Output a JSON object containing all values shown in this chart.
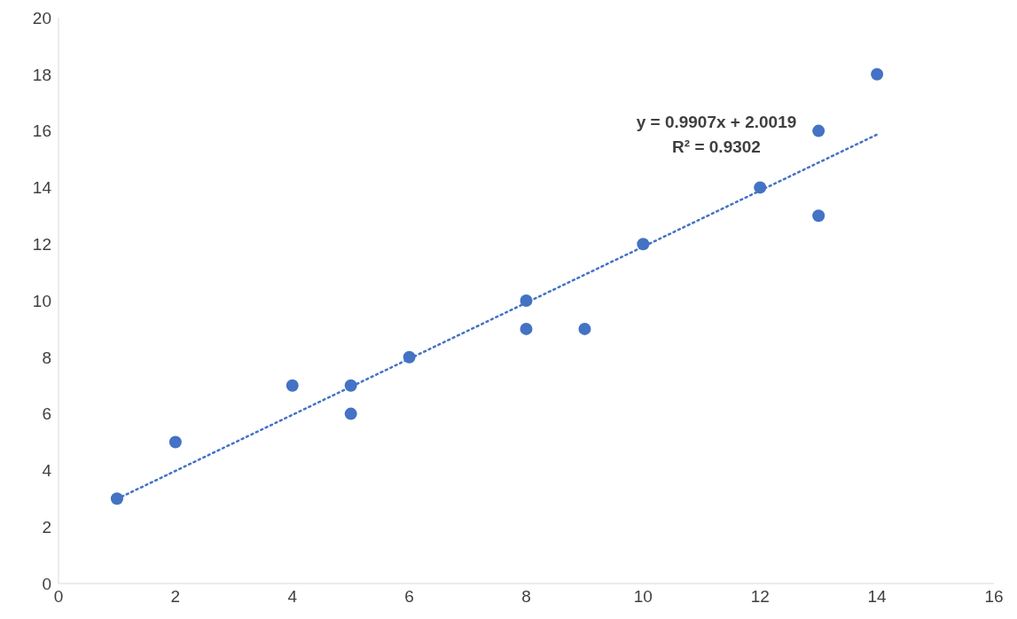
{
  "chart_data": {
    "type": "scatter",
    "xlim": [
      0,
      16
    ],
    "ylim": [
      0,
      20
    ],
    "xticks": [
      0,
      2,
      4,
      6,
      8,
      10,
      12,
      14,
      16
    ],
    "yticks": [
      0,
      2,
      4,
      6,
      8,
      10,
      12,
      14,
      16,
      18,
      20
    ],
    "annotations": [
      "y = 0.9907x + 2.0019",
      "R² = 0.9302"
    ],
    "series": [
      {
        "color": "#4472c4",
        "marker": "circle",
        "x": [
          1,
          2,
          4,
          5,
          5,
          6,
          8,
          8,
          9,
          10,
          12,
          13,
          13,
          14
        ],
        "values": [
          3,
          5,
          7,
          7,
          6,
          8,
          10,
          9,
          9,
          12,
          14,
          16,
          13,
          18
        ]
      },
      {
        "type": "line",
        "color": "#4472c4",
        "marker": "none",
        "line_style": "dotted",
        "x": [
          1,
          14
        ],
        "values": [
          2.99,
          15.87
        ]
      }
    ]
  }
}
